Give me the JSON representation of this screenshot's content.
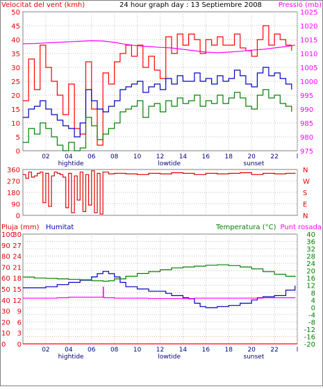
{
  "header": {
    "title": "24 hour graph day : 13 Septiembre 2008",
    "left_label": "Velocitat del vent (kmh)",
    "right_label": "Pressió (mb)"
  },
  "colors": {
    "frame": "#808080",
    "grid": "#c0c0c0",
    "wind_gust": "#ff0000",
    "wind_avg": "#0000c0",
    "wind_min": "#008000",
    "pressure": "#ff00ff",
    "direction": "#e00000",
    "rain": "#ff0000",
    "humidity": "#0000c0",
    "temperature": "#008000",
    "dewpoint": "#ff00ff",
    "label_red": "#e00000",
    "label_blue": "#0000c0",
    "label_green": "#008000",
    "label_magenta": "#ff00ff"
  },
  "x_axis": {
    "ticks": [
      "02",
      "04",
      "06",
      "08",
      "10",
      "12",
      "14",
      "16",
      "18",
      "20",
      "22",
      "l"
    ],
    "events": [
      "hightide",
      "lowtide",
      "sunset"
    ]
  },
  "chart_data": [
    {
      "type": "line",
      "title": "24 hour graph day : 13 Septiembre 2008",
      "ylabel": "Velocitat del vent (kmh)",
      "y2label": "Pressió (mb)",
      "x_unit": "hours",
      "xlim": [
        0,
        24
      ],
      "ylim": [
        0,
        50
      ],
      "yticks": [
        0,
        5,
        10,
        15,
        20,
        25,
        30,
        35,
        40,
        45,
        50
      ],
      "y2lim": [
        975,
        1025
      ],
      "y2ticks": [
        975,
        980,
        985,
        990,
        995,
        1000,
        1005,
        1010,
        1015,
        1020,
        1025
      ],
      "grid": true,
      "series": [
        {
          "key": "gust",
          "axis": "y",
          "x": [
            0,
            0.5,
            1,
            1.5,
            2,
            2.5,
            3,
            3.5,
            4,
            4.5,
            5,
            5.5,
            6,
            6.5,
            7,
            7.5,
            8,
            8.5,
            9,
            9.5,
            10,
            10.5,
            11,
            11.5,
            12,
            12.5,
            13,
            13.5,
            14,
            14.5,
            15,
            15.5,
            16,
            16.5,
            17,
            17.5,
            18,
            18.5,
            19,
            19.5,
            20,
            20.5,
            21,
            21.5,
            22,
            22.5,
            23,
            23.5
          ],
          "values": [
            18,
            33,
            22,
            38,
            30,
            25,
            20,
            13,
            24,
            8,
            6,
            32,
            15,
            2,
            28,
            24,
            32,
            35,
            38,
            34,
            38,
            30,
            34,
            29,
            26,
            41,
            35,
            42,
            38,
            42,
            40,
            35,
            40,
            38,
            41,
            38,
            38,
            42,
            37,
            36,
            34,
            40,
            45,
            38,
            42,
            40,
            38,
            36
          ]
        },
        {
          "key": "avg",
          "axis": "y",
          "x": [
            0,
            0.5,
            1,
            1.5,
            2,
            2.5,
            3,
            3.5,
            4,
            4.5,
            5,
            5.5,
            6,
            6.5,
            7,
            7.5,
            8,
            8.5,
            9,
            9.5,
            10,
            10.5,
            11,
            11.5,
            12,
            12.5,
            13,
            13.5,
            14,
            14.5,
            15,
            15.5,
            16,
            16.5,
            17,
            17.5,
            18,
            18.5,
            19,
            19.5,
            20,
            20.5,
            21,
            21.5,
            22,
            22.5,
            23,
            23.5
          ],
          "values": [
            12,
            15,
            16,
            18,
            15,
            13,
            11,
            9,
            8,
            5,
            10,
            22,
            18,
            15,
            14,
            16,
            18,
            22,
            23,
            24,
            25,
            21,
            23,
            24,
            22,
            26,
            24,
            27,
            25,
            25,
            28,
            25,
            26,
            24,
            27,
            25,
            26,
            29,
            27,
            24,
            23,
            28,
            30,
            27,
            28,
            26,
            24,
            22
          ]
        },
        {
          "key": "min",
          "axis": "y",
          "x": [
            0,
            0.5,
            1,
            1.5,
            2,
            2.5,
            3,
            3.5,
            4,
            4.5,
            5,
            5.5,
            6,
            6.5,
            7,
            7.5,
            8,
            8.5,
            9,
            9.5,
            10,
            10.5,
            11,
            11.5,
            12,
            12.5,
            13,
            13.5,
            14,
            14.5,
            15,
            15.5,
            16,
            16.5,
            17,
            17.5,
            18,
            18.5,
            19,
            19.5,
            20,
            20.5,
            21,
            21.5,
            22,
            22.5,
            23,
            23.5
          ],
          "values": [
            3,
            8,
            6,
            10,
            8,
            5,
            2,
            0,
            3,
            0,
            1,
            12,
            9,
            4,
            6,
            8,
            10,
            14,
            15,
            16,
            18,
            12,
            16,
            17,
            14,
            18,
            16,
            19,
            17,
            18,
            20,
            16,
            18,
            17,
            20,
            17,
            19,
            21,
            19,
            16,
            15,
            20,
            22,
            19,
            20,
            17,
            16,
            14
          ]
        },
        {
          "key": "pressure",
          "axis": "y2",
          "x": [
            0,
            1,
            2,
            3,
            4,
            5,
            6,
            7,
            8,
            9,
            10,
            11,
            12,
            13,
            14,
            15,
            16,
            17,
            18,
            19,
            20,
            21,
            22,
            23,
            23.8
          ],
          "values": [
            1013.5,
            1013.6,
            1013.8,
            1014,
            1014.2,
            1014.4,
            1014.6,
            1014.5,
            1014,
            1013.3,
            1012.8,
            1012.5,
            1012.2,
            1012,
            1011.5,
            1011,
            1010.5,
            1010.3,
            1010.5,
            1010.8,
            1011.2,
            1011.5,
            1012,
            1012.5,
            1013
          ]
        }
      ]
    },
    {
      "type": "line",
      "xlim": [
        0,
        24
      ],
      "ylim": [
        0,
        360
      ],
      "yticks": [
        0,
        90,
        180,
        270,
        360
      ],
      "y2ticklabels": [
        "N",
        "E",
        "S",
        "W",
        "N"
      ],
      "grid": true,
      "series": [
        {
          "key": "direction",
          "x": [
            0,
            0.25,
            0.5,
            0.75,
            1,
            1.25,
            1.5,
            1.75,
            2,
            2.25,
            2.5,
            2.75,
            3,
            3.25,
            3.5,
            3.75,
            4,
            4.25,
            4.5,
            4.75,
            5,
            5.25,
            5.5,
            5.75,
            6,
            6.25,
            6.5,
            6.75,
            7,
            7.5,
            8,
            9,
            10,
            11,
            12,
            13,
            14,
            15,
            16,
            17,
            18,
            19,
            20,
            21,
            22,
            23,
            23.8
          ],
          "values": [
            320,
            290,
            340,
            300,
            310,
            330,
            340,
            100,
            330,
            70,
            310,
            340,
            330,
            320,
            300,
            60,
            330,
            20,
            310,
            120,
            340,
            30,
            320,
            80,
            350,
            20,
            330,
            10,
            340,
            325,
            330,
            325,
            320,
            330,
            325,
            335,
            330,
            320,
            330,
            325,
            330,
            335,
            320,
            330,
            325,
            330,
            335
          ]
        }
      ]
    },
    {
      "type": "line",
      "xlim": [
        0,
        24
      ],
      "y_left_outer_label": "Pluja (mm)",
      "y_left_outer_ticks": [
        0,
        10,
        20,
        30,
        40,
        50,
        60,
        70,
        80,
        90,
        100
      ],
      "y_left_inner_label": "Humitat",
      "y_left_inner_ticks": [
        0,
        3,
        6,
        9,
        12,
        15,
        18,
        21,
        24,
        27,
        30
      ],
      "y_right_label": "Temperatura (°C)",
      "y_right_label2": "Punt rosada",
      "y_right_ticks": [
        -20,
        -16,
        -12,
        -8,
        -4,
        0,
        4,
        8,
        12,
        16,
        20,
        24,
        28,
        32,
        36,
        40
      ],
      "grid": true,
      "series": [
        {
          "key": "rain",
          "axis": "outer",
          "x": [
            0,
            24
          ],
          "values": [
            0,
            0
          ]
        },
        {
          "key": "humidity",
          "axis": "outer",
          "x": [
            0,
            1,
            2,
            3,
            4,
            5,
            6,
            6.5,
            7,
            7.5,
            8,
            8.5,
            9,
            10,
            11,
            12,
            12.5,
            13,
            14,
            14.5,
            15,
            15.5,
            16,
            17,
            18,
            19,
            20,
            20.5,
            21,
            22,
            23,
            23.8
          ],
          "values": [
            51,
            51,
            52,
            54,
            56,
            58,
            61,
            64,
            66,
            64,
            61,
            56,
            52,
            50,
            48,
            48,
            46,
            44,
            42,
            41,
            37,
            34,
            33,
            34,
            35,
            37,
            40,
            42,
            43,
            44,
            49,
            53
          ]
        },
        {
          "key": "temperature",
          "axis": "right",
          "x": [
            0,
            1,
            2,
            3,
            4,
            5,
            6,
            7,
            7.5,
            8,
            9,
            10,
            11,
            12,
            13,
            14,
            15,
            16,
            17,
            18,
            19,
            20,
            21,
            22,
            23,
            23.8
          ],
          "values": [
            16.5,
            16,
            15.8,
            15.5,
            15.2,
            15,
            14.5,
            14.2,
            14.5,
            15.5,
            17,
            18.5,
            19.5,
            20.5,
            21.5,
            22,
            22.5,
            23,
            23.2,
            22.8,
            22,
            21,
            19.5,
            18,
            17,
            16.5
          ]
        },
        {
          "key": "dewpoint",
          "axis": "right",
          "x": [
            0,
            1,
            2,
            3,
            4,
            5,
            6,
            7,
            7.02,
            7.05,
            7.1,
            8,
            9,
            10,
            11,
            12,
            13,
            14,
            15,
            16,
            17,
            18,
            19,
            20,
            21,
            22,
            23,
            23.8
          ],
          "values": [
            5,
            5,
            5,
            5.2,
            5.5,
            5.5,
            5.5,
            5.5,
            11,
            5.5,
            5.2,
            5,
            5,
            5,
            4.8,
            4.8,
            4.8,
            4.8,
            5,
            5,
            5,
            5,
            5,
            5,
            5.2,
            5.2,
            5.2,
            5.3
          ]
        }
      ]
    }
  ],
  "labels": {
    "panel3_rain": "Pluja (mm)",
    "panel3_humidity": "Humitat",
    "panel3_temp": "Temperatura (°C)",
    "panel3_dew": "Punt rosada"
  }
}
